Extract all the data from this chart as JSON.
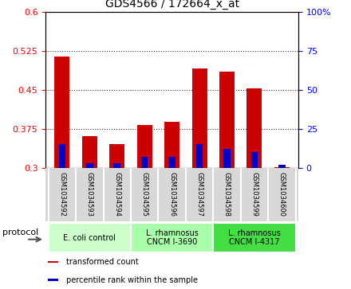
{
  "title": "GDS4566 / 172664_x_at",
  "samples": [
    "GSM1034592",
    "GSM1034593",
    "GSM1034594",
    "GSM1034595",
    "GSM1034596",
    "GSM1034597",
    "GSM1034598",
    "GSM1034599",
    "GSM1034600"
  ],
  "transformed_count": [
    0.513,
    0.36,
    0.345,
    0.382,
    0.388,
    0.49,
    0.485,
    0.452,
    0.301
  ],
  "percentile_rank": [
    15,
    3,
    3,
    7,
    7,
    15,
    12,
    10,
    2
  ],
  "base_value": 0.3,
  "ylim_left": [
    0.3,
    0.6
  ],
  "ylim_right": [
    0,
    100
  ],
  "yticks_left": [
    0.3,
    0.375,
    0.45,
    0.525,
    0.6
  ],
  "yticks_right": [
    0,
    25,
    50,
    75,
    100
  ],
  "bar_color_red": "#cc0000",
  "bar_color_blue": "#0000cc",
  "groups": [
    {
      "label": "E. coli control",
      "start": 0,
      "end": 3,
      "color": "#ccffcc"
    },
    {
      "label": "L. rhamnosus\nCNCM I-3690",
      "start": 3,
      "end": 6,
      "color": "#aaffaa"
    },
    {
      "label": "L. rhamnosus\nCNCM I-4317",
      "start": 6,
      "end": 9,
      "color": "#44dd44"
    }
  ],
  "legend_labels": [
    "transformed count",
    "percentile rank within the sample"
  ],
  "legend_colors": [
    "#cc0000",
    "#0000cc"
  ],
  "protocol_label": "protocol",
  "background_color": "#ffffff",
  "plot_bg_color": "#ffffff",
  "tick_label_area_color": "#d8d8d8"
}
